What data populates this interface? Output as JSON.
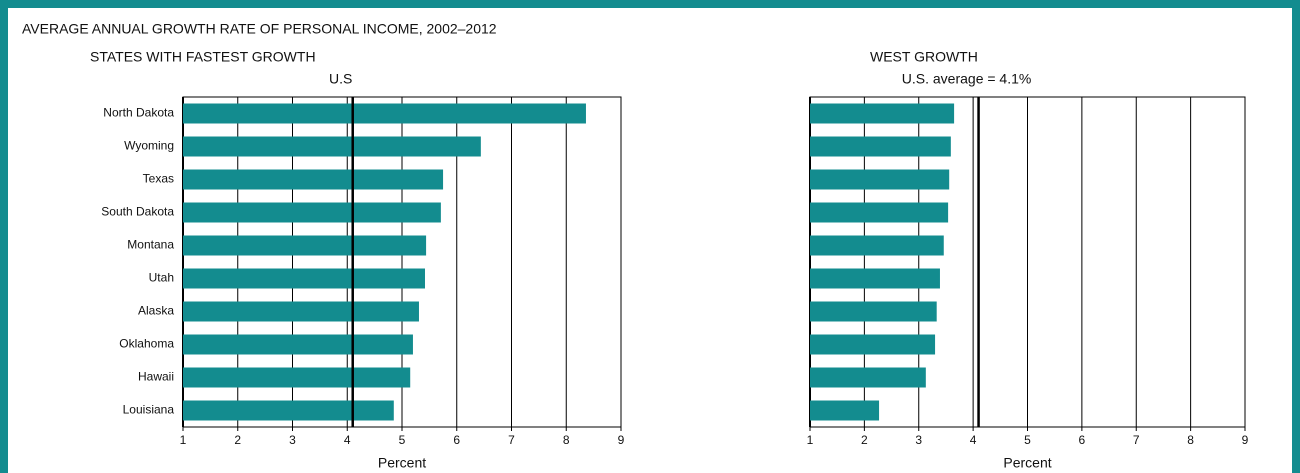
{
  "title": "AVERAGE ANNUAL GROWTH RATE OF PERSONAL INCOME, 2002–2012",
  "chart_data": [
    {
      "type": "bar",
      "orientation": "horizontal",
      "subtitle": "STATES WITH FASTEST GROWTH",
      "reference": {
        "value": 4.1,
        "label": "U.S"
      },
      "categories": [
        "North Dakota",
        "Wyoming",
        "Texas",
        "South Dakota",
        "Montana",
        "Utah",
        "Alaska",
        "Oklahoma",
        "Hawaii",
        "Louisiana"
      ],
      "values": [
        8.36,
        6.44,
        5.75,
        5.71,
        5.44,
        5.42,
        5.31,
        5.2,
        5.15,
        4.85
      ],
      "color": "#138c8f",
      "xlim": [
        1,
        9
      ],
      "xticks": [
        1,
        2,
        3,
        4,
        5,
        6,
        7,
        8,
        9
      ],
      "grid": true,
      "xlabel": "Percent"
    },
    {
      "type": "bar",
      "orientation": "horizontal",
      "subtitle": "WEST GROWTH",
      "reference": {
        "value": 4.1,
        "label": "U.S. average = 4.1%"
      },
      "categories": [
        null,
        null,
        null,
        null,
        null,
        null,
        null,
        null,
        null,
        null
      ],
      "values": [
        3.65,
        3.59,
        3.56,
        3.54,
        3.46,
        3.39,
        3.33,
        3.3,
        3.13,
        2.27
      ],
      "color": "#138c8f",
      "xlim": [
        1,
        9
      ],
      "xticks": [
        1,
        2,
        3,
        4,
        5,
        6,
        7,
        8,
        9
      ],
      "grid": true,
      "xlabel": "Percent"
    }
  ]
}
